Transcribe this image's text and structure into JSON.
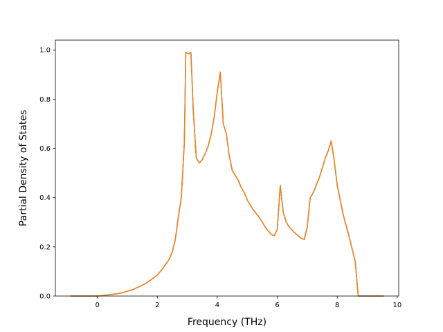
{
  "chart_data": {
    "type": "line",
    "title": "",
    "xlabel": "Frequency (THz)",
    "ylabel": "Partial Density of States",
    "xlim": [
      -1.4,
      10.05
    ],
    "ylim": [
      0.0,
      1.04
    ],
    "xticks": [
      0,
      2,
      4,
      6,
      8,
      10
    ],
    "yticks": [
      0.0,
      0.2,
      0.4,
      0.6,
      0.8,
      1.0
    ],
    "xtick_labels": [
      "0",
      "2",
      "4",
      "6",
      "8",
      "10"
    ],
    "ytick_labels": [
      "0.0",
      "0.2",
      "0.4",
      "0.6",
      "0.8",
      "1.0"
    ],
    "grid": false,
    "series": [
      {
        "color": "#1f77b4",
        "x": [
          -0.9,
          0.0,
          0.4,
          0.8,
          1.2,
          1.6,
          2.0,
          2.2,
          2.4,
          2.5,
          2.6,
          2.7,
          2.8,
          2.9,
          2.95,
          3.05,
          3.12,
          3.2,
          3.3,
          3.4,
          3.5,
          3.6,
          3.7,
          3.8,
          3.9,
          4.0,
          4.1,
          4.2,
          4.3,
          4.4,
          4.5,
          4.6,
          4.7,
          4.8,
          4.9,
          5.0,
          5.2,
          5.4,
          5.6,
          5.8,
          5.9,
          6.0,
          6.1,
          6.2,
          6.3,
          6.4,
          6.6,
          6.8,
          6.9,
          7.0,
          7.1,
          7.2,
          7.4,
          7.6,
          7.7,
          7.8,
          7.9,
          8.0,
          8.2,
          8.4,
          8.6,
          8.7,
          9.0,
          9.55
        ],
        "y": [
          0.0,
          0.0,
          0.005,
          0.012,
          0.027,
          0.05,
          0.085,
          0.115,
          0.15,
          0.18,
          0.23,
          0.32,
          0.4,
          0.62,
          0.99,
          0.985,
          0.99,
          0.75,
          0.56,
          0.54,
          0.555,
          0.58,
          0.61,
          0.66,
          0.73,
          0.83,
          0.91,
          0.7,
          0.66,
          0.57,
          0.51,
          0.49,
          0.47,
          0.44,
          0.42,
          0.39,
          0.35,
          0.32,
          0.28,
          0.25,
          0.245,
          0.27,
          0.45,
          0.34,
          0.3,
          0.28,
          0.255,
          0.235,
          0.23,
          0.28,
          0.4,
          0.42,
          0.48,
          0.56,
          0.59,
          0.63,
          0.55,
          0.45,
          0.33,
          0.24,
          0.14,
          0.0,
          0.0,
          0.0
        ]
      },
      {
        "color": "#ff7f0e",
        "x": [
          -0.9,
          0.0,
          0.4,
          0.8,
          1.2,
          1.6,
          2.0,
          2.2,
          2.4,
          2.5,
          2.6,
          2.7,
          2.8,
          2.9,
          2.95,
          3.05,
          3.12,
          3.2,
          3.3,
          3.4,
          3.5,
          3.6,
          3.7,
          3.8,
          3.9,
          4.0,
          4.1,
          4.2,
          4.3,
          4.4,
          4.5,
          4.6,
          4.7,
          4.8,
          4.9,
          5.0,
          5.2,
          5.4,
          5.6,
          5.8,
          5.9,
          6.0,
          6.1,
          6.2,
          6.3,
          6.4,
          6.6,
          6.8,
          6.9,
          7.0,
          7.1,
          7.2,
          7.4,
          7.6,
          7.7,
          7.8,
          7.9,
          8.0,
          8.2,
          8.4,
          8.6,
          8.7,
          9.0,
          9.55
        ],
        "y": [
          0.0,
          0.0,
          0.005,
          0.012,
          0.027,
          0.05,
          0.085,
          0.115,
          0.15,
          0.18,
          0.23,
          0.32,
          0.4,
          0.62,
          0.99,
          0.985,
          0.99,
          0.75,
          0.56,
          0.54,
          0.555,
          0.58,
          0.61,
          0.66,
          0.73,
          0.83,
          0.91,
          0.7,
          0.66,
          0.57,
          0.51,
          0.49,
          0.47,
          0.44,
          0.42,
          0.39,
          0.35,
          0.32,
          0.28,
          0.25,
          0.245,
          0.27,
          0.45,
          0.34,
          0.3,
          0.28,
          0.255,
          0.235,
          0.23,
          0.28,
          0.4,
          0.42,
          0.48,
          0.56,
          0.59,
          0.63,
          0.55,
          0.45,
          0.33,
          0.24,
          0.14,
          0.0,
          0.0,
          0.0
        ]
      }
    ]
  }
}
